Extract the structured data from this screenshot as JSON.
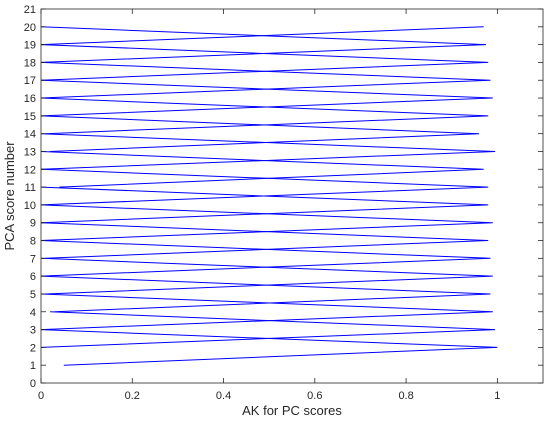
{
  "chart_data": {
    "type": "line",
    "xlabel": "AK for PC scores",
    "ylabel": "PCA score number",
    "xlim": [
      0,
      1.1
    ],
    "ylim": [
      0,
      21
    ],
    "x_ticks": [
      0,
      0.2,
      0.4,
      0.6,
      0.8,
      1
    ],
    "x_tick_labels": [
      "0",
      "0.2",
      "0.4",
      "0.6",
      "0.8",
      "1"
    ],
    "y_ticks": [
      0,
      1,
      2,
      3,
      4,
      5,
      6,
      7,
      8,
      9,
      10,
      11,
      12,
      13,
      14,
      15,
      16,
      17,
      18,
      19,
      20,
      21
    ],
    "y_tick_labels": [
      "0",
      "1",
      "2",
      "3",
      "4",
      "5",
      "6",
      "7",
      "8",
      "9",
      "10",
      "11",
      "12",
      "13",
      "14",
      "15",
      "16",
      "17",
      "18",
      "19",
      "20",
      "21"
    ],
    "grid": false,
    "box": true,
    "line_color": "#0000ff",
    "series": [
      {
        "x": [
          0.05,
          1.0,
          0.0
        ],
        "y": [
          1,
          2,
          3
        ]
      },
      {
        "x": [
          0.0,
          0.995,
          0.02
        ],
        "y": [
          2,
          3,
          4
        ]
      },
      {
        "x": [
          0.0,
          0.99,
          0.0
        ],
        "y": [
          3,
          4,
          5
        ]
      },
      {
        "x": [
          0.03,
          0.985,
          0.0
        ],
        "y": [
          4,
          5,
          6
        ]
      },
      {
        "x": [
          0.01,
          0.99,
          0.0
        ],
        "y": [
          5,
          6,
          7
        ]
      },
      {
        "x": [
          0.0,
          0.985,
          0.0
        ],
        "y": [
          6,
          7,
          8
        ]
      },
      {
        "x": [
          0.01,
          0.98,
          0.0
        ],
        "y": [
          7,
          8,
          9
        ]
      },
      {
        "x": [
          0.0,
          0.99,
          0.0
        ],
        "y": [
          8,
          9,
          10
        ]
      },
      {
        "x": [
          0.0,
          0.98,
          0.0
        ],
        "y": [
          9,
          10,
          11
        ]
      },
      {
        "x": [
          0.0,
          0.98,
          0.0
        ],
        "y": [
          10,
          11,
          12
        ]
      },
      {
        "x": [
          0.04,
          0.97,
          0.0
        ],
        "y": [
          11,
          12,
          13
        ]
      },
      {
        "x": [
          0.0,
          0.995,
          0.0
        ],
        "y": [
          12,
          13,
          14
        ]
      },
      {
        "x": [
          0.02,
          0.96,
          0.0
        ],
        "y": [
          13,
          14,
          15
        ]
      },
      {
        "x": [
          0.01,
          0.98,
          0.0
        ],
        "y": [
          14,
          15,
          16
        ]
      },
      {
        "x": [
          0.0,
          0.99,
          0.0
        ],
        "y": [
          15,
          16,
          17
        ]
      },
      {
        "x": [
          0.0,
          0.985,
          0.0
        ],
        "y": [
          16,
          17,
          18
        ]
      },
      {
        "x": [
          0.0,
          0.98,
          0.0
        ],
        "y": [
          17,
          18,
          19
        ]
      },
      {
        "x": [
          0.0,
          0.975,
          0.0
        ],
        "y": [
          18,
          19,
          20
        ]
      },
      {
        "x": [
          0.0,
          0.97
        ],
        "y": [
          19,
          20
        ]
      }
    ]
  }
}
